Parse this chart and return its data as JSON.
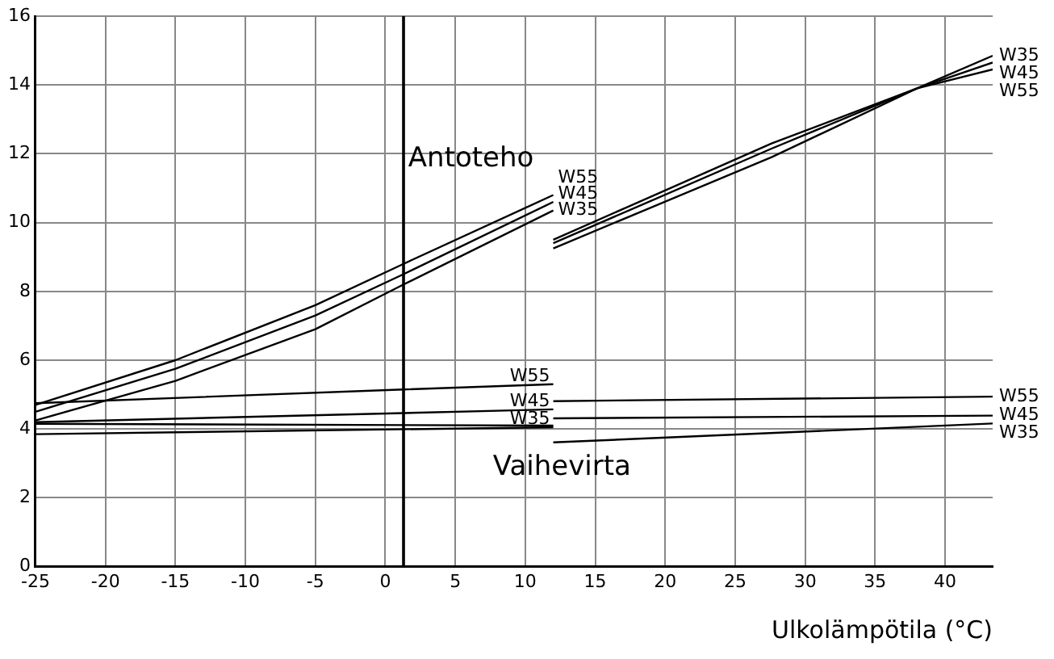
{
  "chart_data": {
    "type": "line",
    "xlabel": "Ulkolämpötila (°C)",
    "xlim": [
      -25,
      43.4
    ],
    "xticks": [
      -25,
      -20,
      -15,
      -10,
      -5,
      0,
      5,
      10,
      15,
      20,
      25,
      30,
      35,
      40
    ],
    "ylim": [
      0,
      16
    ],
    "yticks": [
      0,
      2,
      4,
      6,
      8,
      10,
      12,
      14,
      16
    ],
    "grid": true,
    "legend": false,
    "marker": "none",
    "line_style": "solid",
    "ref_lines": [
      {
        "axis": "x",
        "value": 1.3,
        "color": "#000000"
      }
    ],
    "annotations": [
      "Antoteho",
      "Vaihevirta"
    ],
    "series": [
      {
        "name": "W55",
        "color": "#000000",
        "x": [
          -25,
          -15,
          -5,
          1.3,
          12
        ],
        "values": [
          4.7,
          6.0,
          7.6,
          8.8,
          10.8
        ]
      },
      {
        "name": "W45",
        "color": "#000000",
        "x": [
          -25,
          -15,
          -5,
          1.3,
          12
        ],
        "values": [
          4.5,
          5.75,
          7.3,
          8.5,
          10.6
        ]
      },
      {
        "name": "W35",
        "color": "#000000",
        "x": [
          -25,
          -15,
          -5,
          1.3,
          12
        ],
        "values": [
          4.25,
          5.4,
          6.9,
          8.2,
          10.35
        ]
      },
      {
        "name": "W35",
        "color": "#000000",
        "x": [
          12,
          27.6,
          38,
          43.4
        ],
        "values": [
          9.25,
          11.9,
          13.9,
          14.85
        ]
      },
      {
        "name": "W45",
        "color": "#000000",
        "x": [
          12,
          27.6,
          38,
          43.4
        ],
        "values": [
          9.4,
          12.15,
          13.9,
          14.65
        ]
      },
      {
        "name": "W55",
        "color": "#000000",
        "x": [
          12,
          27.6,
          38,
          43.4
        ],
        "values": [
          9.5,
          12.3,
          13.9,
          14.45
        ]
      },
      {
        "name": "W55",
        "color": "#000000",
        "x": [
          -25,
          1.3,
          12
        ],
        "values": [
          4.75,
          5.15,
          5.3
        ]
      },
      {
        "name": "W45",
        "color": "#000000",
        "x": [
          -25,
          12
        ],
        "values": [
          4.2,
          4.57
        ]
      },
      {
        "name": "W35",
        "color": "#000000",
        "x": [
          -25,
          12
        ],
        "values": [
          3.85,
          4.05
        ]
      },
      {
        "color": "#000000",
        "x": [
          -25,
          12
        ],
        "values": [
          4.15,
          4.1
        ]
      },
      {
        "name": "W55",
        "color": "#000000",
        "x": [
          12,
          43.4
        ],
        "values": [
          4.81,
          4.94
        ]
      },
      {
        "name": "W45",
        "color": "#000000",
        "x": [
          12,
          43.4
        ],
        "values": [
          4.31,
          4.39
        ]
      },
      {
        "name": "W35",
        "color": "#000000",
        "x": [
          12,
          43.4
        ],
        "values": [
          3.61,
          4.16
        ]
      }
    ]
  }
}
